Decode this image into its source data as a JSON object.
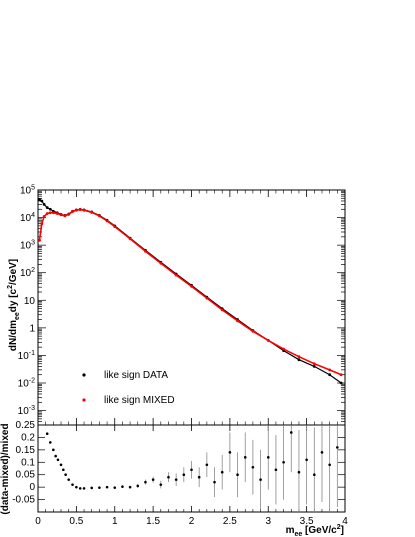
{
  "chart_data": [
    {
      "type": "scatter",
      "title": "",
      "xlabel": {
        "base": "m",
        "sub": "ee",
        "unit_pre": " [GeV/c",
        "unit_sup": "2",
        "unit_post": "]"
      },
      "ylabel": "dN/dm_ee dy [c^2/GeV]",
      "xlim": [
        0,
        4
      ],
      "ylim": [
        0.0003,
        100000
      ],
      "yscale": "log",
      "x_ticks": [
        0,
        0.5,
        1,
        1.5,
        2,
        2.5,
        3,
        3.5,
        4
      ],
      "y_tick_labels": [
        {
          "value": 100000,
          "mant": "10",
          "exp": "5"
        },
        {
          "value": 10000,
          "mant": "10",
          "exp": "4"
        },
        {
          "value": 1000,
          "mant": "10",
          "exp": "3"
        },
        {
          "value": 100,
          "mant": "10",
          "exp": "2"
        },
        {
          "value": 10,
          "mant": "10",
          "exp": ""
        },
        {
          "value": 1,
          "mant": "1",
          "exp": ""
        },
        {
          "value": 0.1,
          "mant": "10",
          "exp": "-1"
        },
        {
          "value": 0.01,
          "mant": "10",
          "exp": "-2"
        },
        {
          "value": 0.001,
          "mant": "10",
          "exp": "-3"
        }
      ],
      "legend": {
        "position": "bottom-left"
      },
      "series": [
        {
          "name": "like sign DATA",
          "color": "#000000",
          "x": [
            0.02,
            0.05,
            0.08,
            0.12,
            0.16,
            0.2,
            0.25,
            0.3,
            0.35,
            0.4,
            0.45,
            0.5,
            0.55,
            0.6,
            0.7,
            0.8,
            0.9,
            1.0,
            1.2,
            1.4,
            1.6,
            1.8,
            2.0,
            2.2,
            2.4,
            2.6,
            2.8,
            3.0,
            3.2,
            3.4,
            3.6,
            3.8,
            3.95
          ],
          "y": [
            45000,
            40000,
            30000,
            23000,
            20000,
            17000,
            15000,
            13000,
            12000,
            13500,
            17000,
            19000,
            20000,
            19000,
            16000,
            12000,
            8000,
            5000,
            1800,
            650,
            240,
            90,
            35,
            13,
            5,
            2,
            0.8,
            0.35,
            0.15,
            0.07,
            0.04,
            0.02,
            0.01
          ]
        },
        {
          "name": "like sign MIXED",
          "color": "#ff0000",
          "x": [
            0.02,
            0.05,
            0.08,
            0.12,
            0.16,
            0.2,
            0.25,
            0.3,
            0.35,
            0.4,
            0.45,
            0.5,
            0.55,
            0.6,
            0.7,
            0.8,
            0.9,
            1.0,
            1.2,
            1.4,
            1.6,
            1.8,
            2.0,
            2.2,
            2.4,
            2.6,
            2.8,
            3.0,
            3.2,
            3.4,
            3.6,
            3.8,
            3.95
          ],
          "y": [
            1500,
            6000,
            11000,
            14000,
            15000,
            15000,
            14000,
            12500,
            11500,
            13000,
            16500,
            18500,
            19500,
            18500,
            15500,
            11500,
            7600,
            4700,
            1700,
            600,
            220,
            82,
            32,
            12,
            4.5,
            1.8,
            0.75,
            0.35,
            0.17,
            0.09,
            0.05,
            0.03,
            0.02
          ]
        }
      ]
    },
    {
      "type": "scatter",
      "title": "",
      "xlabel": "",
      "ylabel": "(data-mixed)/mixed",
      "xlim": [
        0,
        4
      ],
      "ylim": [
        -0.1,
        0.25
      ],
      "x_ticks": [
        0,
        0.5,
        1,
        1.5,
        2,
        2.5,
        3,
        3.5,
        4
      ],
      "x_tick_labels": [
        "0",
        "0.5",
        "1",
        "1.5",
        "2",
        "2.5",
        "3",
        "3.5",
        "4"
      ],
      "y_ticks": [
        -0.05,
        0,
        0.05,
        0.1,
        0.15,
        0.2,
        0.25
      ],
      "y_tick_labels": [
        "-0.05",
        "0",
        "0.05",
        "0.1",
        "0.15",
        "0.2",
        "0.25"
      ],
      "series": [
        {
          "name": "",
          "color": "#000000",
          "x": [
            0.12,
            0.16,
            0.2,
            0.23,
            0.26,
            0.3,
            0.33,
            0.36,
            0.4,
            0.45,
            0.5,
            0.55,
            0.6,
            0.7,
            0.8,
            0.9,
            1.0,
            1.1,
            1.2,
            1.3,
            1.4,
            1.5,
            1.6,
            1.7,
            1.8,
            1.9,
            2.0,
            2.1,
            2.2,
            2.3,
            2.4,
            2.5,
            2.6,
            2.7,
            2.8,
            2.9,
            3.0,
            3.1,
            3.2,
            3.3,
            3.4,
            3.5,
            3.6,
            3.7,
            3.8,
            3.9
          ],
          "y": [
            0.215,
            0.18,
            0.15,
            0.125,
            0.11,
            0.09,
            0.07,
            0.05,
            0.03,
            0.01,
            0.0,
            -0.005,
            -0.005,
            -0.003,
            -0.002,
            0.0,
            -0.002,
            0.002,
            0.0,
            0.005,
            0.02,
            0.03,
            0.01,
            0.04,
            0.03,
            0.05,
            0.07,
            0.04,
            0.09,
            0.02,
            0.06,
            0.14,
            0.05,
            0.12,
            0.08,
            0.03,
            0.12,
            0.07,
            0.1,
            0.22,
            0.06,
            0.11,
            0.05,
            0.14,
            0.09,
            0.16
          ],
          "err": [
            0.004,
            0.004,
            0.004,
            0.004,
            0.004,
            0.004,
            0.004,
            0.004,
            0.004,
            0.003,
            0.003,
            0.003,
            0.003,
            0.003,
            0.003,
            0.003,
            0.004,
            0.005,
            0.006,
            0.008,
            0.01,
            0.012,
            0.015,
            0.02,
            0.025,
            0.03,
            0.035,
            0.04,
            0.05,
            0.06,
            0.07,
            0.08,
            0.09,
            0.1,
            0.11,
            0.12,
            0.13,
            0.14,
            0.15,
            0.16,
            0.17,
            0.18,
            0.19,
            0.2,
            0.22,
            0.24
          ]
        }
      ]
    }
  ]
}
